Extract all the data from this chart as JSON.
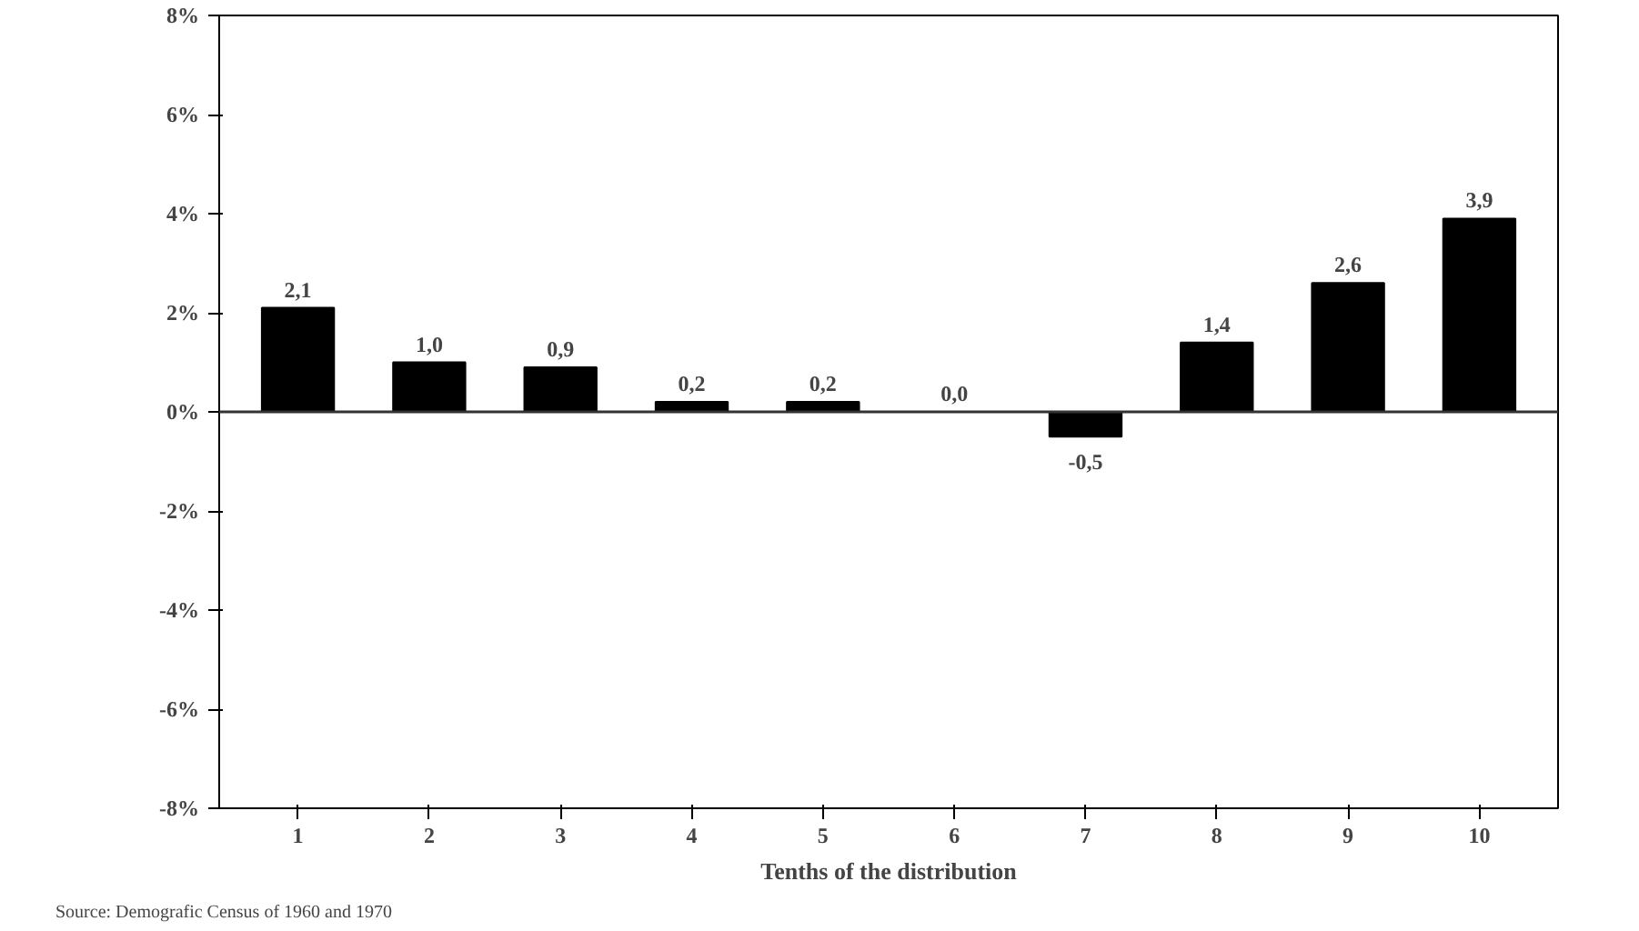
{
  "chart_data": {
    "type": "bar",
    "xlabel": "Tenths of the distribution",
    "categories": [
      "1",
      "2",
      "3",
      "4",
      "5",
      "6",
      "7",
      "8",
      "9",
      "10"
    ],
    "values": [
      2.1,
      1.0,
      0.9,
      0.2,
      0.2,
      0.0,
      -0.5,
      1.4,
      2.6,
      3.9
    ],
    "value_labels": [
      "2,1",
      "1,0",
      "0,9",
      "0,2",
      "0,2",
      "0,0",
      "-0,5",
      "1,4",
      "2,6",
      "3,9"
    ],
    "color": "#000000",
    "ylim": [
      -8,
      8
    ],
    "yticks": [
      {
        "value": -8,
        "label": "-8%"
      },
      {
        "value": -6,
        "label": "-6%"
      },
      {
        "value": -4,
        "label": "-4%"
      },
      {
        "value": -2,
        "label": "-2%"
      },
      {
        "value": 0,
        "label": "0%"
      },
      {
        "value": 2,
        "label": "2%"
      },
      {
        "value": 4,
        "label": "4%"
      },
      {
        "value": 6,
        "label": "6%"
      },
      {
        "value": 8,
        "label": "8%"
      }
    ],
    "ref_lines": [
      {
        "axis": "y",
        "value": 0,
        "color": "#333333"
      }
    ],
    "grid": false,
    "annotations": [
      "Source: Demografic Census of 1960 and 1970"
    ]
  }
}
